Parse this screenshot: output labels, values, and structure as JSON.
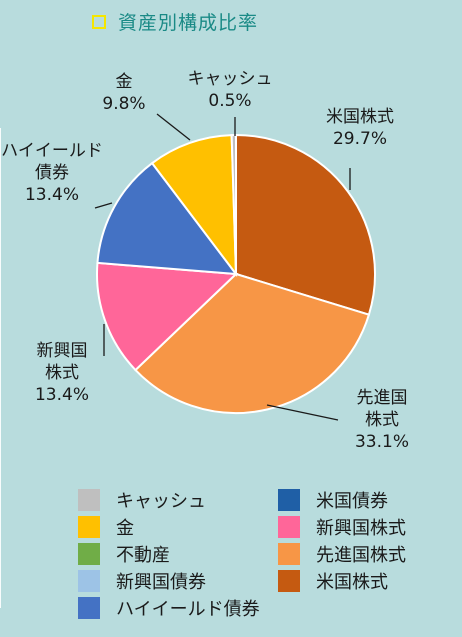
{
  "title": "資産別構成比率",
  "chart_data": {
    "type": "pie",
    "slices": [
      {
        "name": "米国株式",
        "value": 29.7,
        "color": "#c55a11",
        "label_lines": [
          "米国株式",
          "29.7%"
        ]
      },
      {
        "name": "先進国株式",
        "value": 33.1,
        "color": "#f79646",
        "label_lines": [
          "先進国",
          "株式",
          "33.1%"
        ]
      },
      {
        "name": "新興国株式",
        "value": 13.4,
        "color": "#ff6699",
        "label_lines": [
          "新興国",
          "株式",
          "13.4%"
        ]
      },
      {
        "name": "ハイイールド債券",
        "value": 13.4,
        "color": "#4472c4",
        "label_lines": [
          "ハイイールド",
          "債券",
          "13.4%"
        ]
      },
      {
        "name": "金",
        "value": 9.8,
        "color": "#ffc000",
        "label_lines": [
          "金",
          "9.8%"
        ]
      },
      {
        "name": "キャッシュ",
        "value": 0.5,
        "color": "#bfbfbf",
        "label_lines": [
          "キャッシュ",
          "0.5%"
        ]
      }
    ],
    "legend": [
      {
        "label": "キャッシュ",
        "color": "#bfbfbf"
      },
      {
        "label": "米国債券",
        "color": "#1f5fa6"
      },
      {
        "label": "金",
        "color": "#ffc000"
      },
      {
        "label": "新興国株式",
        "color": "#ff6699"
      },
      {
        "label": "不動産",
        "color": "#70ad47"
      },
      {
        "label": "先進国株式",
        "color": "#f79646"
      },
      {
        "label": "新興国債券",
        "color": "#9dc3e6"
      },
      {
        "label": "米国株式",
        "color": "#c55a11"
      },
      {
        "label": "ハイイールド債券",
        "color": "#4472c4"
      }
    ]
  }
}
